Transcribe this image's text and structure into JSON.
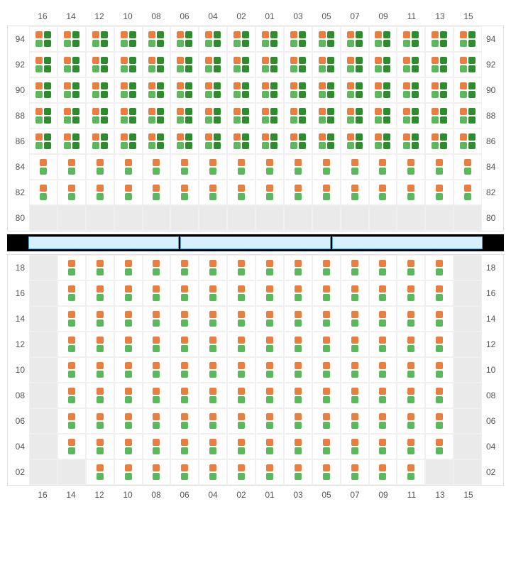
{
  "columns": [
    "16",
    "14",
    "12",
    "10",
    "08",
    "06",
    "04",
    "02",
    "01",
    "03",
    "05",
    "07",
    "09",
    "11",
    "13",
    "15"
  ],
  "top_rows": [
    "94",
    "92",
    "90",
    "88",
    "86",
    "84",
    "82",
    "80"
  ],
  "bottom_rows": [
    "18",
    "16",
    "14",
    "12",
    "10",
    "08",
    "06",
    "04",
    "02"
  ],
  "colors": {
    "orange": "#e87e3f",
    "green": "#5cb85c",
    "dark_green": "#2e8b2e",
    "empty_bg": "#eaeaea",
    "grid_line": "#f0f0f0",
    "stage_fill": "#d6f0ff",
    "stage_border": "#4aa8e0",
    "label_text": "#555555"
  },
  "seat_types": {
    "pair": {
      "top": [
        "orange",
        "dark_green"
      ],
      "bottom": [
        "green",
        "dark_green"
      ]
    },
    "single": {
      "top": [
        "orange"
      ],
      "bottom": [
        "green"
      ]
    },
    "empty": null
  },
  "top_grid": [
    [
      "pair",
      "pair",
      "pair",
      "pair",
      "pair",
      "pair",
      "pair",
      "pair",
      "pair",
      "pair",
      "pair",
      "pair",
      "pair",
      "pair",
      "pair",
      "pair"
    ],
    [
      "pair",
      "pair",
      "pair",
      "pair",
      "pair",
      "pair",
      "pair",
      "pair",
      "pair",
      "pair",
      "pair",
      "pair",
      "pair",
      "pair",
      "pair",
      "pair"
    ],
    [
      "pair",
      "pair",
      "pair",
      "pair",
      "pair",
      "pair",
      "pair",
      "pair",
      "pair",
      "pair",
      "pair",
      "pair",
      "pair",
      "pair",
      "pair",
      "pair"
    ],
    [
      "pair",
      "pair",
      "pair",
      "pair",
      "pair",
      "pair",
      "pair",
      "pair",
      "pair",
      "pair",
      "pair",
      "pair",
      "pair",
      "pair",
      "pair",
      "pair"
    ],
    [
      "pair",
      "pair",
      "pair",
      "pair",
      "pair",
      "pair",
      "pair",
      "pair",
      "pair",
      "pair",
      "pair",
      "pair",
      "pair",
      "pair",
      "pair",
      "pair"
    ],
    [
      "single",
      "single",
      "single",
      "single",
      "single",
      "single",
      "single",
      "single",
      "single",
      "single",
      "single",
      "single",
      "single",
      "single",
      "single",
      "single"
    ],
    [
      "single",
      "single",
      "single",
      "single",
      "single",
      "single",
      "single",
      "single",
      "single",
      "single",
      "single",
      "single",
      "single",
      "single",
      "single",
      "single"
    ],
    [
      "empty",
      "empty",
      "empty",
      "empty",
      "empty",
      "empty",
      "empty",
      "empty",
      "empty",
      "empty",
      "empty",
      "empty",
      "empty",
      "empty",
      "empty",
      "empty"
    ]
  ],
  "bottom_grid": [
    [
      "empty",
      "single",
      "single",
      "single",
      "single",
      "single",
      "single",
      "single",
      "single",
      "single",
      "single",
      "single",
      "single",
      "single",
      "single",
      "empty"
    ],
    [
      "empty",
      "single",
      "single",
      "single",
      "single",
      "single",
      "single",
      "single",
      "single",
      "single",
      "single",
      "single",
      "single",
      "single",
      "single",
      "empty"
    ],
    [
      "empty",
      "single",
      "single",
      "single",
      "single",
      "single",
      "single",
      "single",
      "single",
      "single",
      "single",
      "single",
      "single",
      "single",
      "single",
      "empty"
    ],
    [
      "empty",
      "single",
      "single",
      "single",
      "single",
      "single",
      "single",
      "single",
      "single",
      "single",
      "single",
      "single",
      "single",
      "single",
      "single",
      "empty"
    ],
    [
      "empty",
      "single",
      "single",
      "single",
      "single",
      "single",
      "single",
      "single",
      "single",
      "single",
      "single",
      "single",
      "single",
      "single",
      "single",
      "empty"
    ],
    [
      "empty",
      "single",
      "single",
      "single",
      "single",
      "single",
      "single",
      "single",
      "single",
      "single",
      "single",
      "single",
      "single",
      "single",
      "single",
      "empty"
    ],
    [
      "empty",
      "single",
      "single",
      "single",
      "single",
      "single",
      "single",
      "single",
      "single",
      "single",
      "single",
      "single",
      "single",
      "single",
      "single",
      "empty"
    ],
    [
      "empty",
      "single",
      "single",
      "single",
      "single",
      "single",
      "single",
      "single",
      "single",
      "single",
      "single",
      "single",
      "single",
      "single",
      "single",
      "empty"
    ],
    [
      "empty",
      "empty",
      "single",
      "single",
      "single",
      "single",
      "single",
      "single",
      "single",
      "single",
      "single",
      "single",
      "single",
      "single",
      "empty",
      "empty"
    ]
  ],
  "stage_segments": 3
}
